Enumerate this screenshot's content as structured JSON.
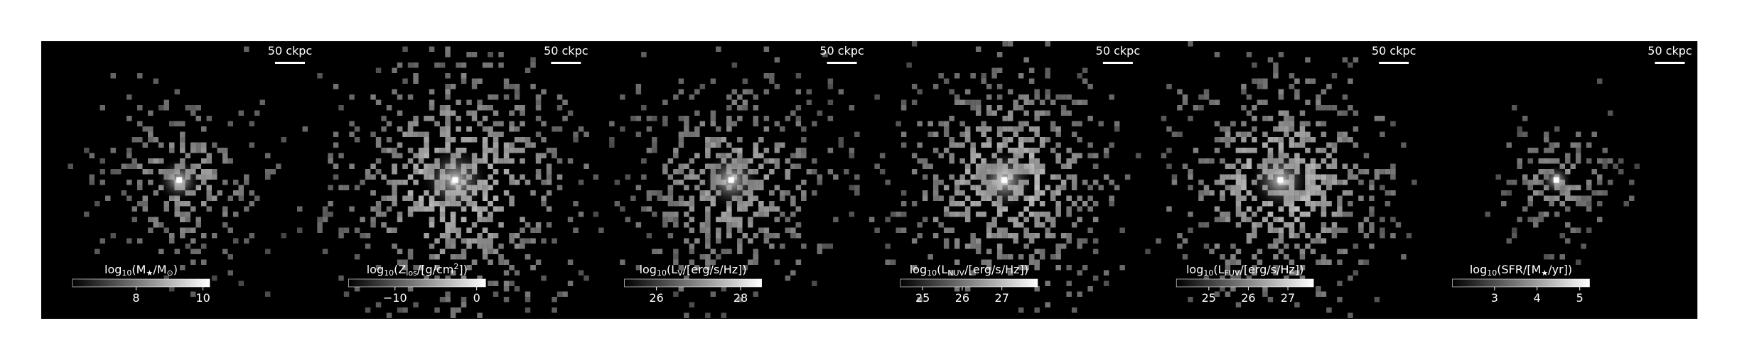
{
  "panels": [
    {
      "scale_bar": "50 ckpc",
      "colorbar": {
        "label": [
          {
            "text": "log"
          },
          {
            "text": "10",
            "sub": true
          },
          {
            "text": "(M"
          },
          {
            "text": "★",
            "sub": true
          },
          {
            "text": "/M"
          },
          {
            "text": "⊙",
            "sub": true
          },
          {
            "text": ")"
          }
        ],
        "clim": [
          6.1,
          10.2
        ],
        "ticks": [
          8,
          10
        ]
      }
    },
    {
      "scale_bar": "50 ckpc",
      "colorbar": {
        "label": [
          {
            "text": "log"
          },
          {
            "text": "10",
            "sub": true
          },
          {
            "text": "(Z"
          },
          {
            "text": "los",
            "sub": true
          },
          {
            "text": "/[g/cm"
          },
          {
            "text": "2",
            "sup": true
          },
          {
            "text": "])"
          }
        ],
        "clim": [
          -15.7,
          1.1
        ],
        "ticks": [
          {
            "value": -10,
            "label": "−10"
          },
          0
        ]
      }
    },
    {
      "scale_bar": "50 ckpc",
      "colorbar": {
        "label": [
          {
            "text": "log"
          },
          {
            "text": "10",
            "sub": true
          },
          {
            "text": "(L"
          },
          {
            "text": "V",
            "sub": true
          },
          {
            "text": "/[erg/s/Hz])"
          }
        ],
        "clim": [
          25.24,
          28.5
        ],
        "ticks": [
          26,
          28
        ]
      }
    },
    {
      "scale_bar": "50 ckpc",
      "colorbar": {
        "label": [
          {
            "text": "log"
          },
          {
            "text": "10",
            "sub": true
          },
          {
            "text": "(L"
          },
          {
            "text": "NUV",
            "sub": true
          },
          {
            "text": "/[erg/s/Hz])"
          }
        ],
        "clim": [
          24.44,
          27.9
        ],
        "ticks": [
          25,
          26,
          27
        ]
      }
    },
    {
      "scale_bar": "50 ckpc",
      "colorbar": {
        "label": [
          {
            "text": "log"
          },
          {
            "text": "10",
            "sub": true
          },
          {
            "text": "(L"
          },
          {
            "text": "FUV",
            "sub": true
          },
          {
            "text": "/[erg/s/Hz])"
          }
        ],
        "clim": [
          24.18,
          27.65
        ],
        "ticks": [
          25,
          26,
          27
        ]
      }
    },
    {
      "scale_bar": "50 ckpc",
      "colorbar": {
        "label": [
          {
            "text": "log"
          },
          {
            "text": "10",
            "sub": true
          },
          {
            "text": "(SFR/[M"
          },
          {
            "text": "★",
            "sub": true
          },
          {
            "text": "/yr])"
          }
        ],
        "clim": [
          2.01,
          5.23
        ],
        "ticks": [
          3,
          4,
          5
        ]
      }
    }
  ]
}
